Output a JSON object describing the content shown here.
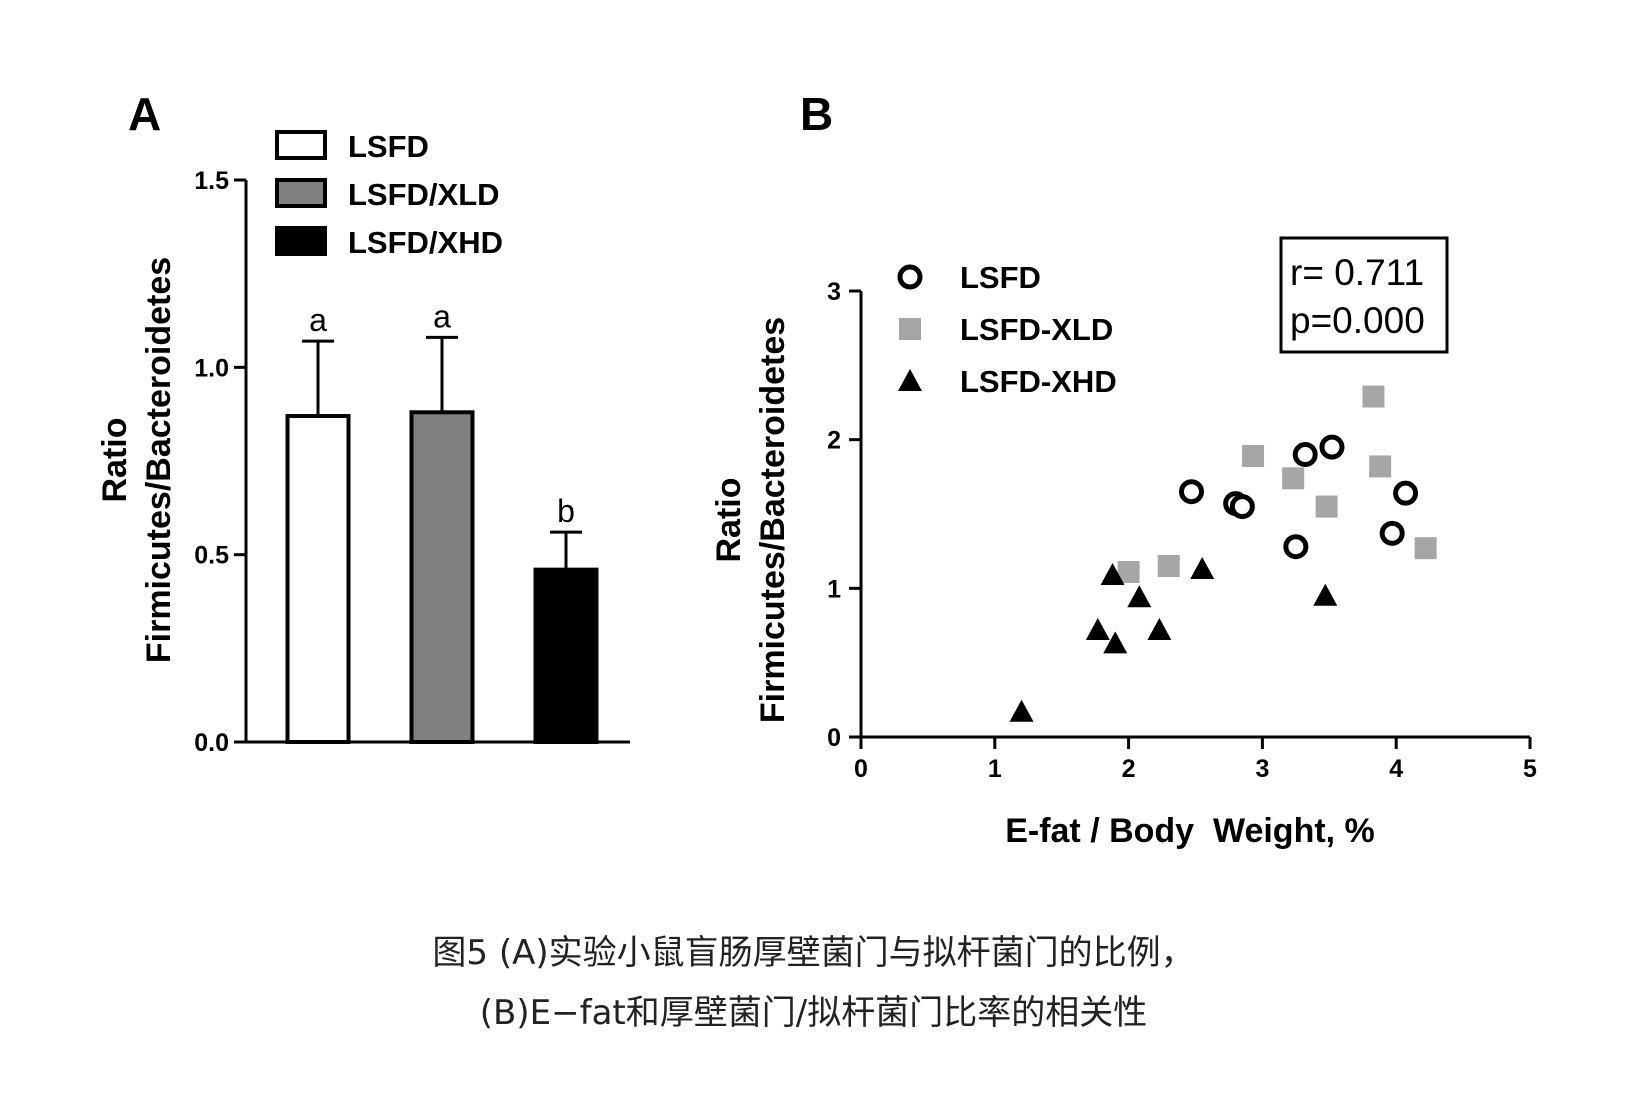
{
  "chart_data": [
    {
      "panel": "A",
      "type": "bar",
      "categories": [
        "LSFD",
        "LSFD/XLD",
        "LSFD/XHD"
      ],
      "values": [
        0.87,
        0.88,
        0.46
      ],
      "errors": [
        0.2,
        0.2,
        0.1
      ],
      "significance": [
        "a",
        "a",
        "b"
      ],
      "colors": [
        "#ffffff",
        "#808080",
        "#000000"
      ],
      "legend": [
        "LSFD",
        "LSFD/XLD",
        "LSFD/XHD"
      ],
      "ylabel_lines": [
        "Ratio",
        "Firmicutes/Bacteroidetes"
      ],
      "xlabel": "",
      "ylim": [
        0,
        1.5
      ],
      "yticks": [
        "0.0",
        "0.5",
        "1.0",
        "1.5"
      ],
      "legend_position": "top"
    },
    {
      "panel": "B",
      "type": "scatter",
      "xlabel": "E-fat / Body  Weight, %",
      "ylabel_lines": [
        "Ratio",
        "Firmicutes/Bacteroidetes"
      ],
      "xlim": [
        0,
        5
      ],
      "ylim": [
        0,
        3
      ],
      "xticks": [
        "0",
        "1",
        "2",
        "3",
        "4",
        "5"
      ],
      "yticks": [
        "0",
        "1",
        "2",
        "3"
      ],
      "series": [
        {
          "name": "LSFD",
          "marker": "open-circle",
          "color": "#000000",
          "points": [
            [
              2.47,
              1.65
            ],
            [
              2.8,
              1.57
            ],
            [
              2.85,
              1.55
            ],
            [
              3.25,
              1.28
            ],
            [
              3.32,
              1.9
            ],
            [
              3.52,
              1.95
            ],
            [
              3.97,
              1.37
            ],
            [
              4.07,
              1.64
            ]
          ]
        },
        {
          "name": "LSFD-XLD",
          "marker": "square",
          "color": "#a6a6a6",
          "points": [
            [
              2.0,
              1.11
            ],
            [
              2.3,
              1.15
            ],
            [
              2.93,
              1.89
            ],
            [
              3.23,
              1.74
            ],
            [
              3.48,
              1.55
            ],
            [
              3.83,
              2.29
            ],
            [
              3.88,
              1.82
            ],
            [
              4.22,
              1.27
            ]
          ]
        },
        {
          "name": "LSFD-XHD",
          "marker": "triangle",
          "color": "#000000",
          "points": [
            [
              1.2,
              0.17
            ],
            [
              1.77,
              0.72
            ],
            [
              1.88,
              1.09
            ],
            [
              1.9,
              0.63
            ],
            [
              2.08,
              0.94
            ],
            [
              2.23,
              0.72
            ],
            [
              2.55,
              1.13
            ],
            [
              3.47,
              0.95
            ]
          ]
        }
      ],
      "stats": {
        "r": "r= 0.711",
        "p": "p=0.000"
      },
      "legend_position": "top-left"
    }
  ],
  "caption": {
    "line1": "图5  (A)实验小鼠盲肠厚壁菌门与拟杆菌门的比例，",
    "line2": "(B)E−fat和厚壁菌门/拟杆菌门比率的相关性"
  },
  "panel_labels": {
    "a": "A",
    "b": "B"
  }
}
